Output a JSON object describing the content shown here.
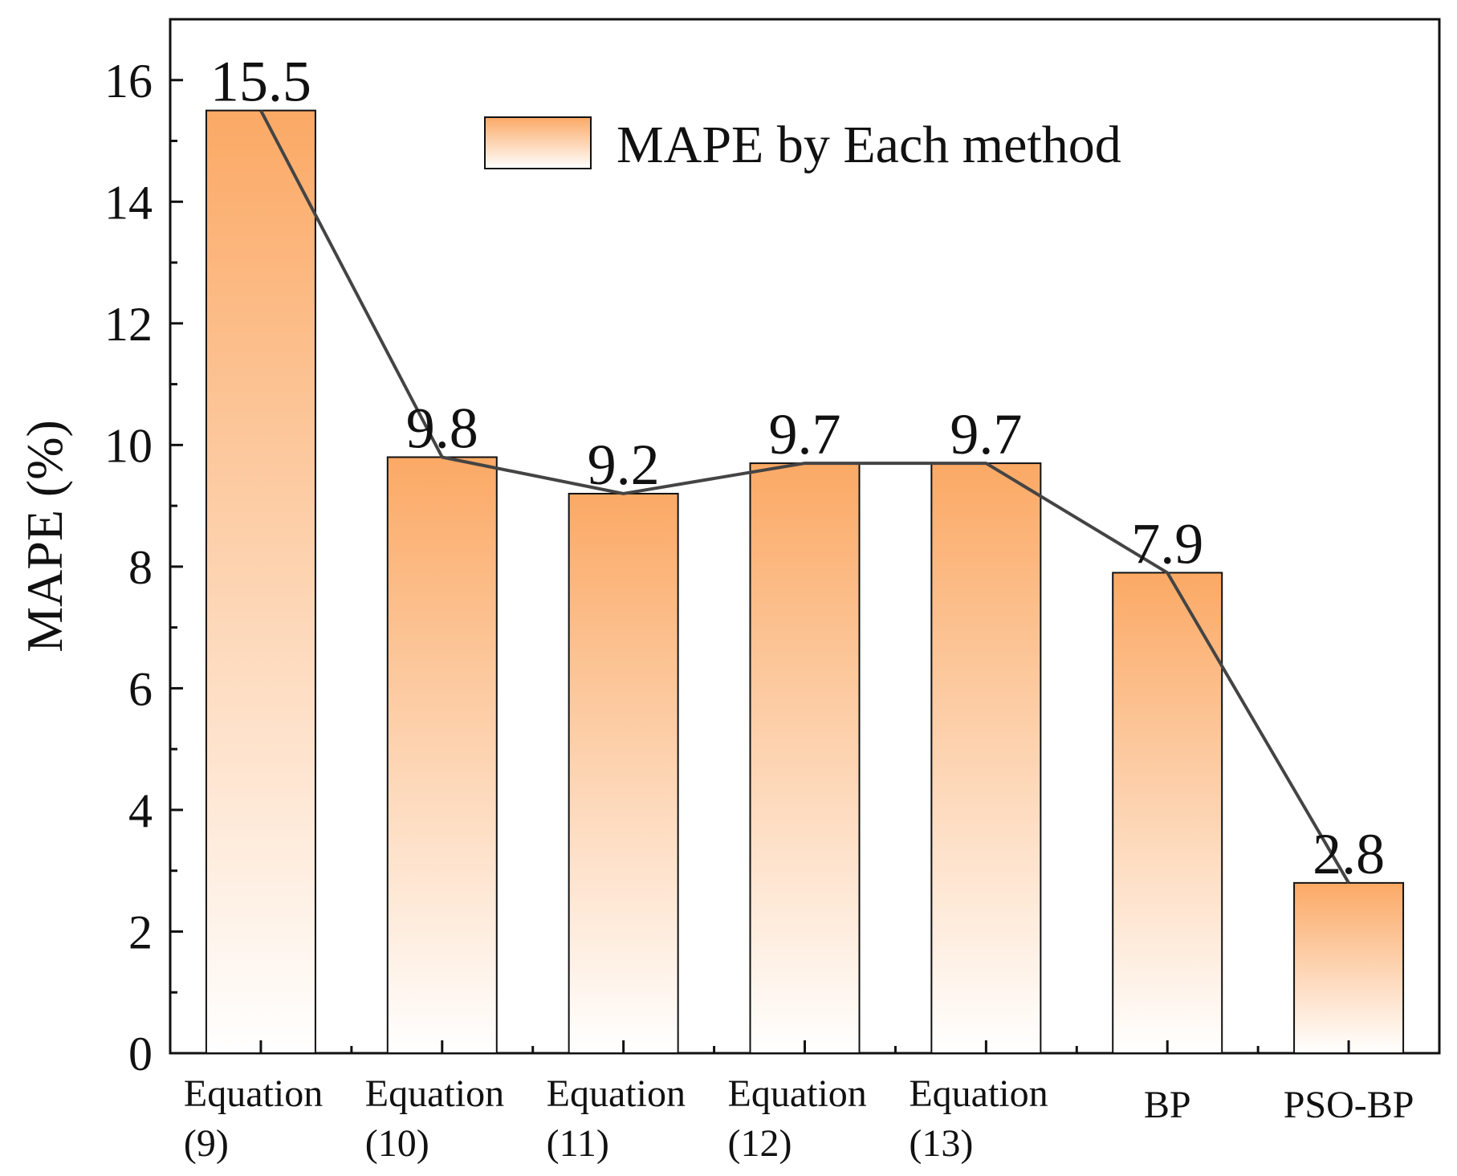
{
  "chart_data": {
    "type": "bar",
    "categories": [
      [
        "Equation",
        "(9)"
      ],
      [
        "Equation",
        "(10)"
      ],
      [
        "Equation",
        "(11)"
      ],
      [
        "Equation",
        "(12)"
      ],
      [
        "Equation",
        "(13)"
      ],
      [
        "BP"
      ],
      [
        "PSO-BP"
      ]
    ],
    "values": [
      15.5,
      9.8,
      9.2,
      9.7,
      9.7,
      7.9,
      2.8
    ],
    "value_labels": [
      "15.5",
      "9.8",
      "9.2",
      "9.7",
      "9.7",
      "7.9",
      "2.8"
    ],
    "ylabel": "MAPE (%)",
    "xlabel": "",
    "ylim": [
      0,
      17
    ],
    "yticks": [
      0,
      2,
      4,
      6,
      8,
      10,
      12,
      14,
      16
    ],
    "legend": {
      "label": "MAPE by Each method",
      "position": "top-right"
    },
    "overlay_line": true,
    "colors": {
      "bar_top": "#fba965",
      "bar_bottom": "#ffffff",
      "bar_stroke": "#111111",
      "line": "#444444",
      "axis": "#111111"
    }
  }
}
